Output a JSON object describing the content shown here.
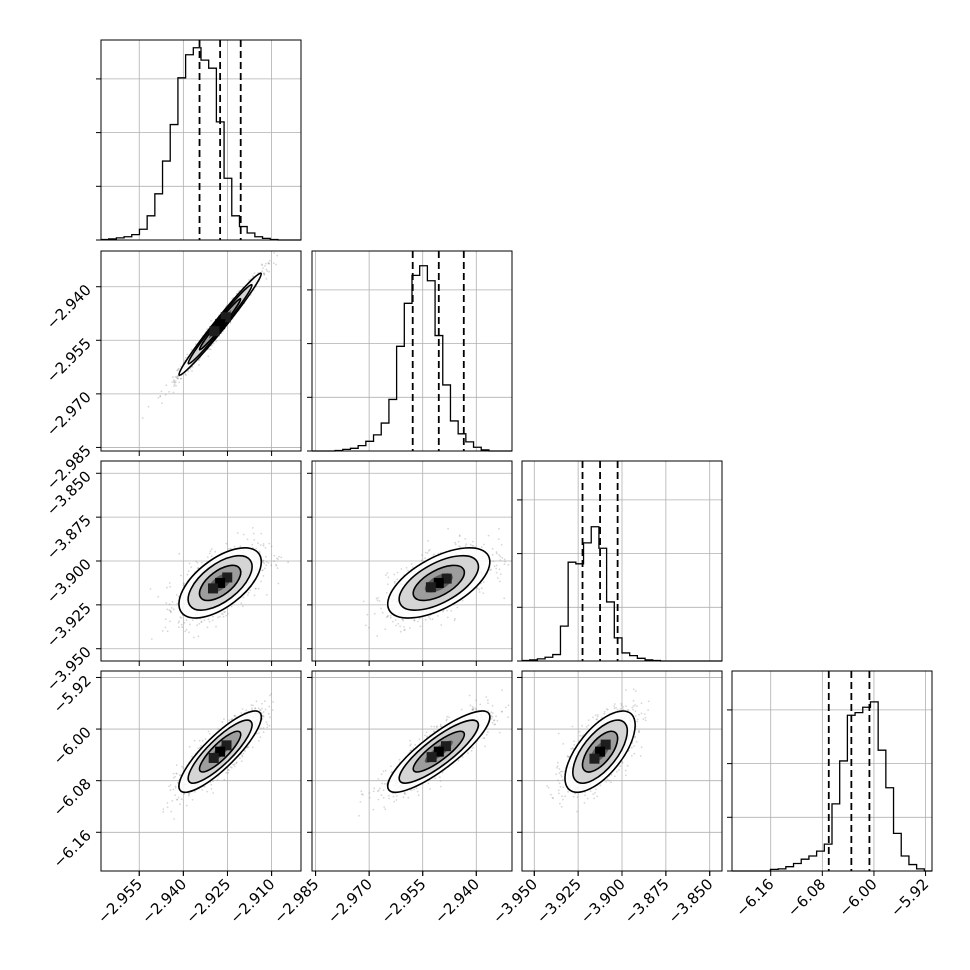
{
  "chart_data": {
    "type": "corner",
    "title": "",
    "grid": true,
    "parameters": [
      {
        "label": "",
        "median": -2.9275,
        "q16": -2.9345,
        "q84": -2.9205,
        "range": [
          -2.968,
          -2.9
        ],
        "ticks": [
          -2.955,
          -2.94,
          -2.925,
          -2.91
        ],
        "tick_labels": [
          "−2.955",
          "−2.940",
          "−2.925",
          "−2.910"
        ],
        "bins": 26,
        "hist": [
          0.01,
          0.02,
          0.04,
          0.06,
          0.1,
          0.2,
          0.45,
          0.86,
          1.47,
          2.15,
          3.02,
          3.45,
          3.58,
          3.35,
          3.2,
          2.2,
          1.15,
          0.45,
          0.25,
          0.13,
          0.06,
          0.03,
          0.01,
          0.0,
          0.0,
          0.0
        ]
      },
      {
        "label": "",
        "median": -2.9505,
        "q16": -2.9578,
        "q84": -2.9435,
        "range": [
          -2.986,
          -2.93
        ],
        "ticks": [
          -2.985,
          -2.97,
          -2.955,
          -2.94
        ],
        "tick_labels": [
          "−2.985",
          "−2.970",
          "−2.955",
          "−2.940"
        ],
        "bins": 26,
        "hist": [
          0.0,
          0.0,
          0.0,
          0.01,
          0.03,
          0.05,
          0.1,
          0.18,
          0.3,
          0.52,
          0.96,
          1.95,
          2.75,
          3.27,
          3.45,
          3.17,
          2.15,
          1.23,
          0.56,
          0.32,
          0.17,
          0.07,
          0.02,
          0.0,
          0.0,
          0.0
        ]
      },
      {
        "label": "",
        "median": -3.9125,
        "q16": -3.9225,
        "q84": -3.9025,
        "range": [
          -3.957,
          -3.843
        ],
        "ticks": [
          -3.95,
          -3.925,
          -3.9,
          -3.875,
          -3.85
        ],
        "tick_labels": [
          "−3.950",
          "−3.925",
          "−3.900",
          "−3.875",
          "−3.850"
        ],
        "bins": 26,
        "hist": [
          0.01,
          0.02,
          0.04,
          0.07,
          0.12,
          0.65,
          1.84,
          1.81,
          2.2,
          2.5,
          2.1,
          1.1,
          0.43,
          0.15,
          0.1,
          0.05,
          0.02,
          0.01,
          0.0,
          0.0,
          0.0,
          0.0,
          0.0,
          0.0,
          0.0,
          0.0
        ]
      },
      {
        "label": "",
        "median": -6.035,
        "q16": -6.07,
        "q84": -6.007,
        "range": [
          -6.22,
          -5.91
        ],
        "ticks": [
          -6.16,
          -6.08,
          -6.0,
          -5.92
        ],
        "tick_labels": [
          "−6.16",
          "−6.08",
          "−6.00",
          "−5.92"
        ],
        "bins": 26,
        "hist": [
          0.0,
          0.0,
          0.0,
          0.0,
          0.0,
          0.03,
          0.04,
          0.08,
          0.14,
          0.22,
          0.28,
          0.37,
          0.5,
          1.25,
          2.05,
          2.9,
          2.95,
          3.05,
          3.15,
          2.25,
          1.55,
          0.7,
          0.28,
          0.12,
          0.04,
          0.0
        ]
      },
      {
        "hidden_note": null
      }
    ],
    "pairs": [
      {
        "row": 1,
        "col": 0,
        "correlation": 0.985
      },
      {
        "row": 2,
        "col": 0,
        "correlation": 0.6
      },
      {
        "row": 2,
        "col": 1,
        "correlation": 0.6
      },
      {
        "row": 3,
        "col": 0,
        "correlation": 0.85
      },
      {
        "row": 3,
        "col": 1,
        "correlation": 0.85
      },
      {
        "row": 3,
        "col": 2,
        "correlation": 0.65
      }
    ],
    "hist_y_ticks": [
      1,
      2,
      3
    ]
  },
  "colors": {
    "frame": "#000000",
    "grid": "#b0b0b0",
    "points": "#8c8c8c"
  }
}
